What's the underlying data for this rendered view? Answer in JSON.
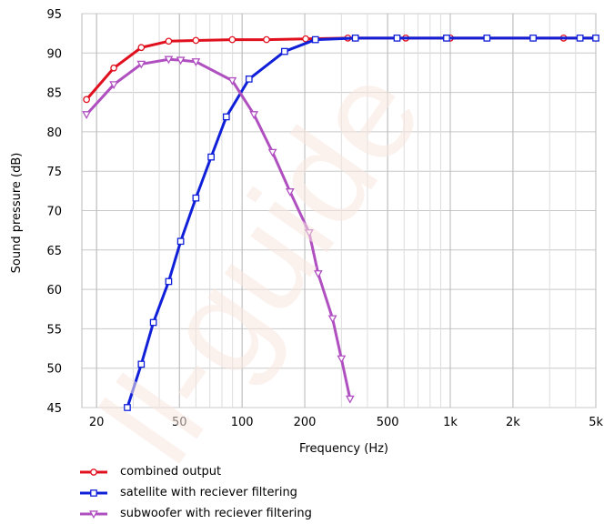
{
  "chart_data": {
    "type": "line",
    "xlabel": "Frequency  (Hz)",
    "ylabel": "Sound pressure  (dB)",
    "xscale": "log",
    "xlim": [
      17,
      5000
    ],
    "ylim": [
      45,
      95
    ],
    "x_ticks": [
      {
        "value": 20,
        "label": "20"
      },
      {
        "value": 50,
        "label": "50"
      },
      {
        "value": 100,
        "label": "100"
      },
      {
        "value": 200,
        "label": "200"
      },
      {
        "value": 500,
        "label": "500"
      },
      {
        "value": 1000,
        "label": "1k"
      },
      {
        "value": 2000,
        "label": "2k"
      },
      {
        "value": 5000,
        "label": "5k"
      }
    ],
    "y_ticks": [
      45,
      50,
      55,
      60,
      65,
      70,
      75,
      80,
      85,
      90,
      95
    ],
    "grid": true,
    "legend_position": "bottom-left",
    "series": [
      {
        "name": "combined output",
        "color": "#e0101e",
        "marker": "circle",
        "points": [
          [
            17.9,
            84.1
          ],
          [
            24.2,
            88.1
          ],
          [
            32.8,
            90.7
          ],
          [
            44.4,
            91.5
          ],
          [
            60.0,
            91.6
          ],
          [
            89.7,
            91.7
          ],
          [
            131,
            91.7
          ],
          [
            202,
            91.8
          ],
          [
            322,
            91.9
          ],
          [
            350,
            91.9
          ],
          [
            555,
            91.9
          ],
          [
            611,
            91.9
          ],
          [
            960,
            91.9
          ],
          [
            1000,
            91.9
          ],
          [
            1500,
            91.9
          ],
          [
            2500,
            91.9
          ],
          [
            3500,
            91.9
          ],
          [
            4200,
            91.9
          ],
          [
            5000,
            91.9
          ]
        ]
      },
      {
        "name": "satellite with reciever filtering",
        "color": "#1020d8",
        "marker": "square",
        "points": [
          [
            28.1,
            45.0
          ],
          [
            32.8,
            50.5
          ],
          [
            37.5,
            55.8
          ],
          [
            44.4,
            61.0
          ],
          [
            50.7,
            66.1
          ],
          [
            60.0,
            71.6
          ],
          [
            71.0,
            76.8
          ],
          [
            84.0,
            81.9
          ],
          [
            108,
            86.7
          ],
          [
            160,
            90.2
          ],
          [
            225,
            91.7
          ],
          [
            350,
            91.9
          ],
          [
            555,
            91.9
          ],
          [
            960,
            91.9
          ],
          [
            1500,
            91.9
          ],
          [
            2500,
            91.9
          ],
          [
            4200,
            91.9
          ],
          [
            5000,
            91.9
          ]
        ]
      },
      {
        "name": "subwoofer with reciever filtering",
        "color": "#b050c0",
        "marker": "triangle-down",
        "points": [
          [
            17.9,
            82.2
          ],
          [
            24.2,
            86.0
          ],
          [
            32.8,
            88.6
          ],
          [
            44.4,
            89.2
          ],
          [
            50.7,
            89.1
          ],
          [
            60.0,
            88.9
          ],
          [
            89.7,
            86.5
          ],
          [
            114,
            82.2
          ],
          [
            140,
            77.4
          ],
          [
            170,
            72.4
          ],
          [
            210,
            67.2
          ],
          [
            232,
            62.0
          ],
          [
            272,
            56.3
          ],
          [
            300,
            51.2
          ],
          [
            330,
            46.1
          ]
        ]
      }
    ]
  }
}
